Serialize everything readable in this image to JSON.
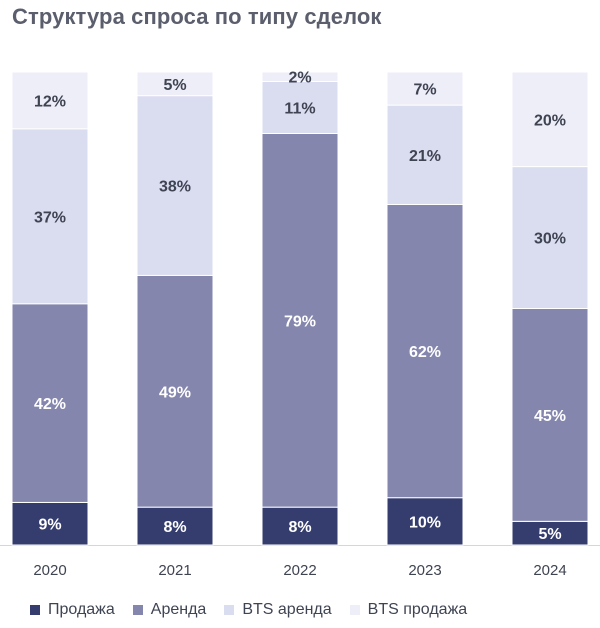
{
  "title": "Структура спроса по типу сделок",
  "chart_data": {
    "type": "bar",
    "stacked": true,
    "categories": [
      "2020",
      "2021",
      "2022",
      "2023",
      "2024"
    ],
    "series": [
      {
        "name": "Продажа",
        "values": [
          9,
          8,
          8,
          10,
          5
        ],
        "labels": [
          "9%",
          "8%",
          "8%",
          "10%",
          "5%"
        ],
        "color": "#343d6e",
        "label_color": "#ffffff"
      },
      {
        "name": "Аренда",
        "values": [
          42,
          49,
          79,
          62,
          45
        ],
        "labels": [
          "42%",
          "49%",
          "79%",
          "62%",
          "45%"
        ],
        "color": "#8486ad",
        "label_color": "#ffffff"
      },
      {
        "name": "BTS аренда",
        "values": [
          37,
          38,
          11,
          21,
          30
        ],
        "labels": [
          "37%",
          "38%",
          "11%",
          "21%",
          "30%"
        ],
        "color": "#dadcf0",
        "label_color": "#3f4452"
      },
      {
        "name": "BTS продажа",
        "values": [
          12,
          5,
          2,
          7,
          20
        ],
        "labels": [
          "12%",
          "5%",
          "2%",
          "7%",
          "20%"
        ],
        "color": "#eeeef8",
        "label_color": "#3f4452"
      }
    ],
    "ylim": [
      0,
      100
    ],
    "legend_position": "bottom",
    "grid": false
  }
}
